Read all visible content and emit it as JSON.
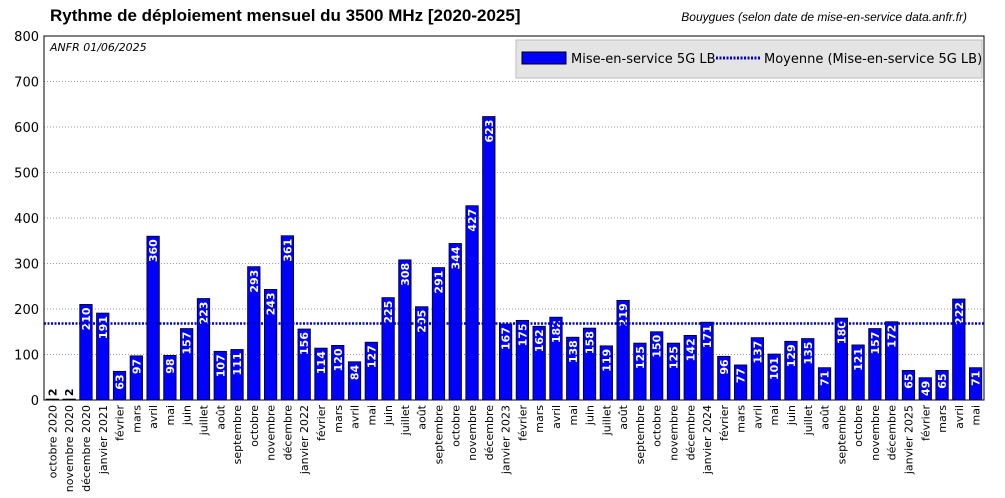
{
  "chart_data": {
    "type": "bar",
    "title": "Rythme de déploiement mensuel du 3500 MHz [2020-2025]",
    "subtitle": "Bouygues (selon date de mise-en-service data.anfr.fr)",
    "source_note": "ANFR 01/06/2025",
    "ylim": [
      0,
      800
    ],
    "yticks": [
      0,
      100,
      200,
      300,
      400,
      500,
      600,
      700,
      800
    ],
    "grid": true,
    "legend_position": "top-right",
    "colors": {
      "bar": "#0000ff",
      "bar_edge": "#000000",
      "average": "#0000cc",
      "grid": "#9a9a9a"
    },
    "categories": [
      "octobre 2020",
      "novembre 2020",
      "décembre 2020",
      "janvier 2021",
      "février",
      "mars",
      "avril",
      "mai",
      "juin",
      "juillet",
      "août",
      "septembre",
      "octobre",
      "novembre",
      "décembre",
      "janvier 2022",
      "février",
      "mars",
      "avril",
      "mai",
      "juin",
      "juillet",
      "août",
      "septembre",
      "octobre",
      "novembre",
      "décembre",
      "janvier 2023",
      "février",
      "mars",
      "avril",
      "mai",
      "juin",
      "juillet",
      "août",
      "septembre",
      "octobre",
      "novembre",
      "décembre",
      "janvier 2024",
      "février",
      "mars",
      "avril",
      "mai",
      "juin",
      "juillet",
      "août",
      "septembre",
      "octobre",
      "novembre",
      "décembre",
      "janvier 2025",
      "février",
      "mars",
      "avril",
      "mai"
    ],
    "series": [
      {
        "name": "Mise-en-service 5G LB",
        "values": [
          2,
          2,
          210,
          191,
          63,
          97,
          360,
          98,
          157,
          223,
          107,
          111,
          293,
          243,
          361,
          156,
          114,
          120,
          84,
          127,
          225,
          308,
          205,
          291,
          344,
          427,
          623,
          167,
          175,
          162,
          182,
          138,
          158,
          119,
          219,
          125,
          150,
          125,
          142,
          171,
          96,
          77,
          137,
          101,
          129,
          135,
          71,
          180,
          121,
          157,
          172,
          65,
          49,
          65,
          222,
          71
        ]
      }
    ],
    "average": {
      "name": "Moyenne (Mise-en-service 5G LB)",
      "value": 168
    }
  }
}
